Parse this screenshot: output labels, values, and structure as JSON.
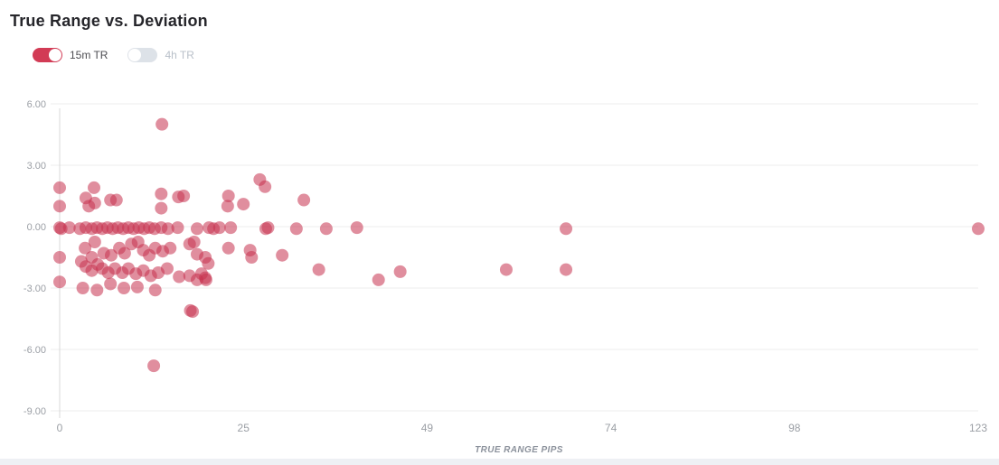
{
  "title": "True Range vs. Deviation",
  "legend": {
    "toggles": [
      {
        "label": "15m TR",
        "state": "on",
        "color": "#d23b55"
      },
      {
        "label": "4h TR",
        "state": "off",
        "color": "#dde2e8"
      }
    ]
  },
  "colors": {
    "point": "#c6324f",
    "point_opacity": "0.55",
    "gridline": "#ececec",
    "axis_line": "#d9d9d9",
    "tick_label": "#9b9fa5",
    "axis_title": "#8c929c",
    "title_text": "#26262b"
  },
  "chart_data": {
    "type": "scatter",
    "title": "True Range vs. Deviation",
    "xlabel": "TRUE RANGE PIPS",
    "ylabel": "",
    "xlim": [
      0,
      123
    ],
    "ylim": [
      -9,
      6
    ],
    "x_tick_labels": [
      "0",
      "25",
      "49",
      "74",
      "98",
      "123"
    ],
    "y_tick_labels": [
      "6.00",
      "3.00",
      "0.00",
      "-3.00",
      "-6.00",
      "-9.00"
    ],
    "grid": "horizontal",
    "legend_position": "top-left",
    "series": [
      {
        "name": "15m TR",
        "visible": true,
        "color": "#c6324f",
        "opacity": 0.55,
        "points": [
          [
            13.7,
            5.0
          ],
          [
            12.6,
            -6.8
          ],
          [
            17.5,
            -4.1
          ],
          [
            17.8,
            -4.15
          ],
          [
            0,
            1.9
          ],
          [
            0,
            1.0
          ],
          [
            0,
            -0.05
          ],
          [
            0.2,
            -0.1
          ],
          [
            0,
            -1.5
          ],
          [
            0,
            -2.7
          ],
          [
            1.3,
            -0.05
          ],
          [
            2.7,
            -0.1
          ],
          [
            3.5,
            -0.05
          ],
          [
            4.3,
            -0.1
          ],
          [
            5,
            -0.05
          ],
          [
            5.7,
            -0.1
          ],
          [
            6.4,
            -0.05
          ],
          [
            7.1,
            -0.1
          ],
          [
            7.8,
            -0.05
          ],
          [
            8.5,
            -0.1
          ],
          [
            9.2,
            -0.05
          ],
          [
            9.9,
            -0.1
          ],
          [
            10.6,
            -0.05
          ],
          [
            11.3,
            -0.1
          ],
          [
            12,
            -0.05
          ],
          [
            12.7,
            -0.1
          ],
          [
            13.6,
            -0.05
          ],
          [
            14.5,
            -0.1
          ],
          [
            15.8,
            -0.05
          ],
          [
            18.4,
            -0.1
          ],
          [
            20,
            -0.05
          ],
          [
            20.6,
            -0.1
          ],
          [
            21.4,
            -0.05
          ],
          [
            22.9,
            -0.05
          ],
          [
            27.6,
            -0.1
          ],
          [
            27.9,
            -0.05
          ],
          [
            31.7,
            -0.1
          ],
          [
            35.7,
            -0.1
          ],
          [
            39.8,
            -0.05
          ],
          [
            67.8,
            -0.1
          ],
          [
            123,
            -0.1
          ],
          [
            3.5,
            1.4
          ],
          [
            3.9,
            1.0
          ],
          [
            4.6,
            1.9
          ],
          [
            4.7,
            1.15
          ],
          [
            6.8,
            1.3
          ],
          [
            7.6,
            1.3
          ],
          [
            13.6,
            1.6
          ],
          [
            13.6,
            0.9
          ],
          [
            15.9,
            1.45
          ],
          [
            16.6,
            1.5
          ],
          [
            22.5,
            1.0
          ],
          [
            22.6,
            1.5
          ],
          [
            24.6,
            1.1
          ],
          [
            26.8,
            2.3
          ],
          [
            27.5,
            1.95
          ],
          [
            32.7,
            1.3
          ],
          [
            3.4,
            -1.05
          ],
          [
            4.3,
            -1.5
          ],
          [
            4.7,
            -0.75
          ],
          [
            5.9,
            -1.3
          ],
          [
            6.9,
            -1.4
          ],
          [
            8,
            -1.05
          ],
          [
            8.7,
            -1.3
          ],
          [
            9.6,
            -0.85
          ],
          [
            10.5,
            -0.75
          ],
          [
            11.2,
            -1.15
          ],
          [
            12,
            -1.4
          ],
          [
            12.8,
            -1.05
          ],
          [
            13.8,
            -1.2
          ],
          [
            14.8,
            -1.05
          ],
          [
            17.4,
            -0.85
          ],
          [
            18,
            -0.75
          ],
          [
            18.4,
            -1.35
          ],
          [
            19.5,
            -1.5
          ],
          [
            22.6,
            -1.05
          ],
          [
            25.5,
            -1.15
          ],
          [
            25.7,
            -1.5
          ],
          [
            29.8,
            -1.4
          ],
          [
            2.9,
            -1.7
          ],
          [
            3.5,
            -1.95
          ],
          [
            4.3,
            -2.15
          ],
          [
            5.1,
            -1.85
          ],
          [
            5.7,
            -2.05
          ],
          [
            6.5,
            -2.25
          ],
          [
            7.4,
            -2.05
          ],
          [
            8.4,
            -2.25
          ],
          [
            9.2,
            -2.05
          ],
          [
            10.2,
            -2.3
          ],
          [
            11.2,
            -2.15
          ],
          [
            12.2,
            -2.4
          ],
          [
            13.2,
            -2.25
          ],
          [
            14.4,
            -2.05
          ],
          [
            16,
            -2.45
          ],
          [
            17.4,
            -2.4
          ],
          [
            18.4,
            -2.6
          ],
          [
            19,
            -2.3
          ],
          [
            19.6,
            -2.6
          ],
          [
            19.9,
            -1.8
          ],
          [
            34.7,
            -2.1
          ],
          [
            42.7,
            -2.6
          ],
          [
            45.6,
            -2.2
          ],
          [
            59.8,
            -2.1
          ],
          [
            67.8,
            -2.1
          ],
          [
            3.1,
            -3.0
          ],
          [
            5,
            -3.1
          ],
          [
            6.8,
            -2.8
          ],
          [
            8.6,
            -3.0
          ],
          [
            10.4,
            -2.95
          ],
          [
            12.8,
            -3.1
          ],
          [
            19.5,
            -2.5
          ]
        ]
      },
      {
        "name": "4h TR",
        "visible": false,
        "color": "#dde2e8",
        "opacity": 0.55,
        "points": []
      }
    ]
  }
}
